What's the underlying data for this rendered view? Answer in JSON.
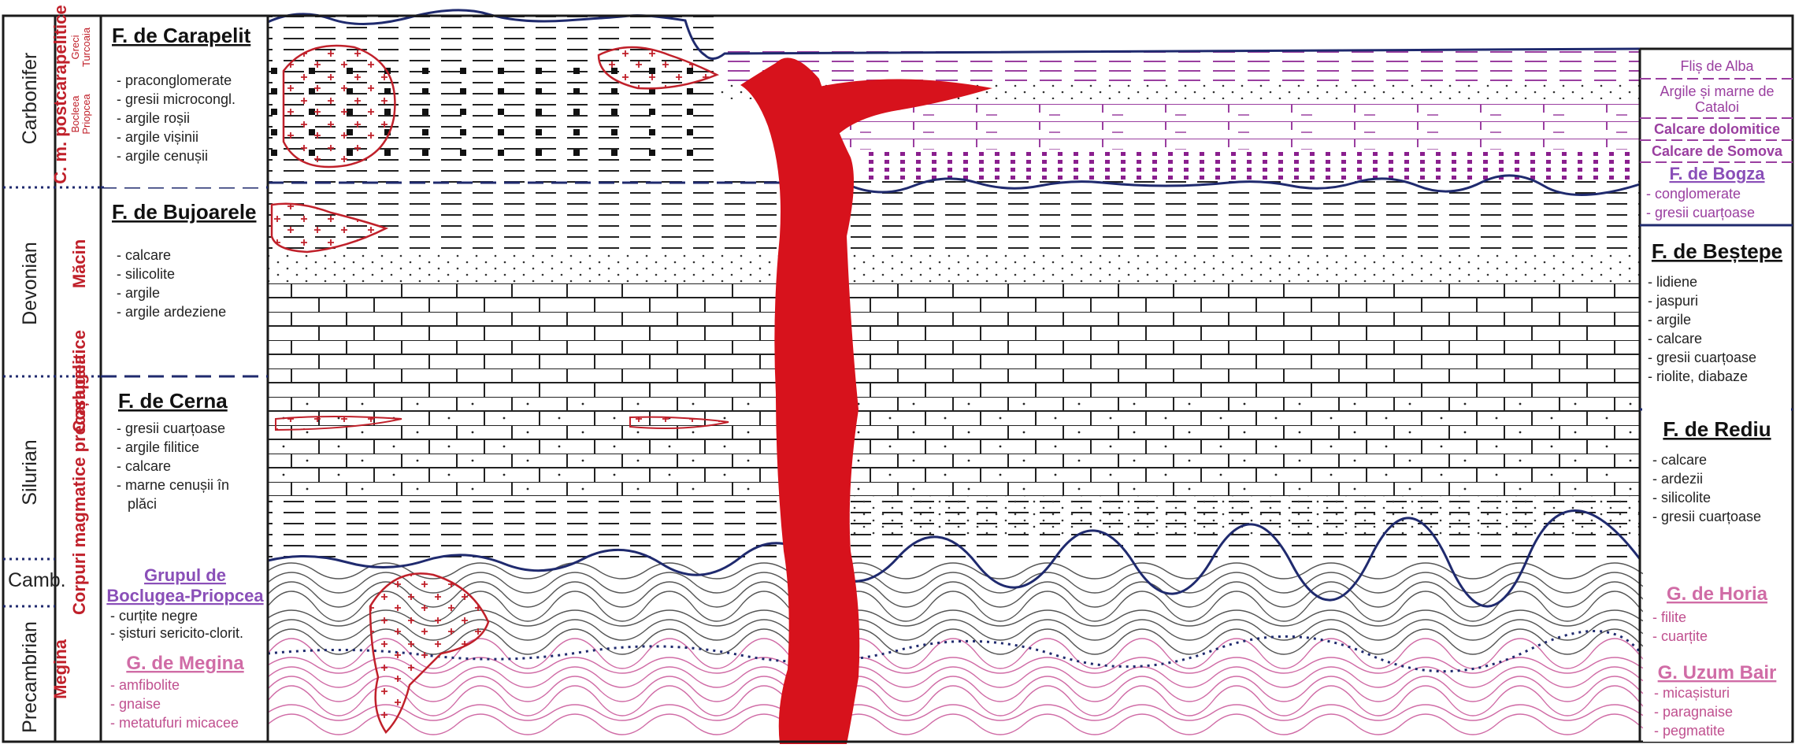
{
  "eras": {
    "carbonifer": "Carbonifer",
    "devonian": "Devonian",
    "silurian": "Silurian",
    "camb": "Camb.",
    "precambrian": "Precambrian"
  },
  "magmatic_column": {
    "main": "Corpuri magmatice precarapelitice",
    "postcarapelitice": "C. m. postcarapelitice",
    "priopcea": "Priopcea",
    "bocleea": "Bocleea",
    "greci": "Greci",
    "turcoaia": "Turcoaia",
    "macin": "Măcin",
    "cosiugea": "Coșlugea",
    "megina": "Megina"
  },
  "left_formations": {
    "carapelit": {
      "title": "F. de Carapelit",
      "items": [
        "- praconglomerate",
        "- gresii microcongl.",
        "- argile roșii",
        "- argile vișinii",
        "- argile cenușii"
      ]
    },
    "bujoarele": {
      "title": "F. de Bujoarele",
      "items": [
        "- calcare",
        "- silicolite",
        "- argile",
        "- argile ardeziene"
      ]
    },
    "cerna": {
      "title": "F. de Cerna",
      "items": [
        "- gresii cuarțoase",
        "- argile filitice",
        "- calcare",
        "- marne cenușii în",
        "plăci"
      ]
    },
    "boclugea": {
      "title_1": "Grupul de",
      "title_2": "Boclugea-Priopcea",
      "items": [
        "- curțite negre",
        "- șisturi sericito-clorit."
      ]
    },
    "megina": {
      "title": "G. de Megina",
      "items": [
        "- amfibolite",
        "- gnaise",
        "- metatufuri micacee"
      ]
    }
  },
  "right_formations": {
    "flis_alba": "Fliș de Alba",
    "argile_cataloi_1": "Argile și marne de",
    "argile_cataloi_2": "Cataloi",
    "calcare_dolomitice": "Calcare dolomitice",
    "calcare_somova": "Calcare de Somova",
    "bogza": {
      "title": "F. de Bogza",
      "items": [
        "- conglomerate",
        "- gresii cuarțoase"
      ]
    },
    "bestepe": {
      "title": "F. de Beștepe",
      "items": [
        "- lidiene",
        "- jaspuri",
        "- argile",
        "- calcare",
        "- gresii cuarțoase",
        "- riolite, diabaze"
      ]
    },
    "rediu": {
      "title": "F. de Rediu",
      "items": [
        "- calcare",
        "- ardezii",
        "- silicolite",
        "- gresii cuarțoase"
      ]
    },
    "horia": {
      "title": "G. de Horia",
      "items": [
        "- filite",
        "- cuarțite"
      ]
    },
    "uzum_bair": {
      "title": "G. Uzum Bair",
      "items": [
        "- micașisturi",
        "- paragnaise",
        "- pegmatite"
      ]
    }
  },
  "colors": {
    "frame": "#1a1a1a",
    "unconformity": "#1f2a6e",
    "intrusion": "#d7121c",
    "granite": "#c0202a",
    "purple": "#9a3fa0",
    "pink": "#d06ca6"
  }
}
